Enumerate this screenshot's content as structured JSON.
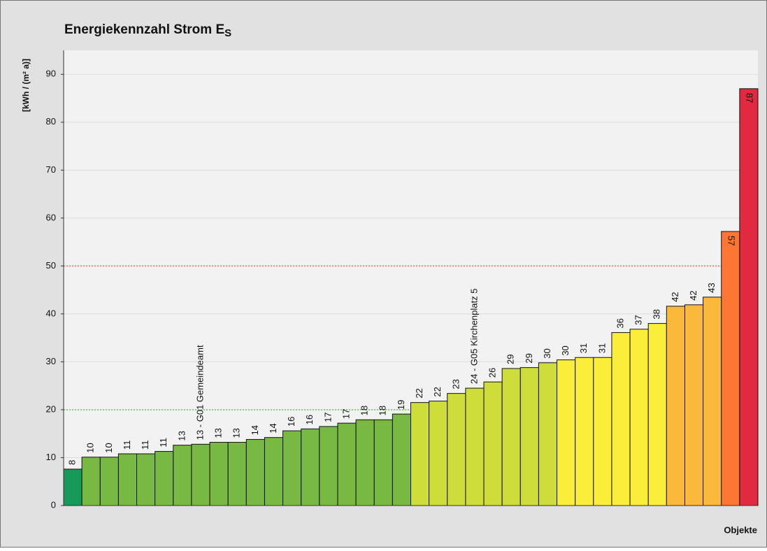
{
  "chart_data": {
    "type": "bar",
    "title": "Energiekennzahl Strom E",
    "title_subscript": "S",
    "y_label": "[kWh / (m² a)]",
    "x_label": "Objekte",
    "values": [
      7.6,
      10.1,
      10.1,
      10.8,
      10.8,
      11.3,
      12.6,
      12.8,
      13.2,
      13.2,
      13.8,
      14.2,
      15.6,
      16.0,
      16.5,
      17.2,
      17.9,
      17.9,
      19.1,
      21.5,
      21.8,
      23.4,
      24.5,
      25.8,
      28.6,
      28.8,
      29.8,
      30.4,
      30.9,
      30.9,
      36.1,
      36.8,
      38.0,
      41.6,
      41.9,
      43.5,
      57.2,
      87.0
    ],
    "value_labels": [
      "8",
      "10",
      "10",
      "11",
      "11",
      "11",
      "13",
      "13 - G01 Gemeindeamt",
      "13",
      "13",
      "14",
      "14",
      "16",
      "16",
      "17",
      "17",
      "18",
      "18",
      "19",
      "22",
      "22",
      "23",
      "24 - G05 Kirchenplatz 5",
      "26",
      "29",
      "29",
      "30",
      "30",
      "31",
      "31",
      "36",
      "37",
      "38",
      "42",
      "42",
      "43",
      "57",
      "87"
    ],
    "colors": [
      "#17995a",
      "#78b943",
      "#78b943",
      "#78b943",
      "#78b943",
      "#78b943",
      "#78b943",
      "#78b943",
      "#78b943",
      "#78b943",
      "#78b943",
      "#78b943",
      "#78b943",
      "#78b943",
      "#78b943",
      "#78b943",
      "#78b943",
      "#78b943",
      "#78b943",
      "#cfdd3a",
      "#cfdd3a",
      "#cfdd3a",
      "#cfdd3a",
      "#cfdd3a",
      "#cfdd3a",
      "#cfdd3a",
      "#cfdd3a",
      "#fbee3a",
      "#fbee3a",
      "#fbee3a",
      "#fbee3a",
      "#fbee3a",
      "#fbee3a",
      "#fbb93b",
      "#fbb93b",
      "#fbb93b",
      "#fd7634",
      "#e12a40"
    ],
    "ylim": [
      0,
      95
    ],
    "yticks": [
      0,
      10,
      20,
      30,
      40,
      50,
      60,
      70,
      80,
      90
    ],
    "grid": true,
    "reference_lines": [
      {
        "value": 20,
        "color": "#8fd36a"
      },
      {
        "value": 50,
        "color": "#f08a8a"
      }
    ]
  }
}
